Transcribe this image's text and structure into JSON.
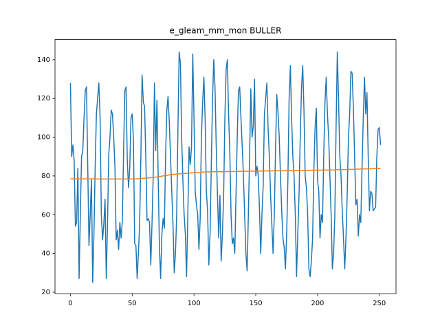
{
  "chart_data": {
    "type": "line",
    "title": "e_gleam_mm_mon BULLER",
    "x": [
      0,
      1,
      2,
      3,
      4,
      5,
      6,
      7,
      8,
      9,
      10,
      11,
      12,
      13,
      14,
      15,
      16,
      17,
      18,
      19,
      20,
      21,
      22,
      23,
      24,
      25,
      26,
      27,
      28,
      29,
      30,
      31,
      32,
      33,
      34,
      35,
      36,
      37,
      38,
      39,
      40,
      41,
      42,
      43,
      44,
      45,
      46,
      47,
      48,
      49,
      50,
      51,
      52,
      53,
      54,
      55,
      56,
      57,
      58,
      59,
      60,
      61,
      62,
      63,
      64,
      65,
      66,
      67,
      68,
      69,
      70,
      71,
      72,
      73,
      74,
      75,
      76,
      77,
      78,
      79,
      80,
      81,
      82,
      83,
      84,
      85,
      86,
      87,
      88,
      89,
      90,
      91,
      92,
      93,
      94,
      95,
      96,
      97,
      98,
      99,
      100,
      101,
      102,
      103,
      104,
      105,
      106,
      107,
      108,
      109,
      110,
      111,
      112,
      113,
      114,
      115,
      116,
      117,
      118,
      119,
      120,
      121,
      122,
      123,
      124,
      125,
      126,
      127,
      128,
      129,
      130,
      131,
      132,
      133,
      134,
      135,
      136,
      137,
      138,
      139,
      140,
      141,
      142,
      143,
      144,
      145,
      146,
      147,
      148,
      149,
      150,
      151,
      152,
      153,
      154,
      155,
      156,
      157,
      158,
      159,
      160,
      161,
      162,
      163,
      164,
      165,
      166,
      167,
      168,
      169,
      170,
      171,
      172,
      173,
      174,
      175,
      176,
      177,
      178,
      179,
      180,
      181,
      182,
      183,
      184,
      185,
      186,
      187,
      188,
      189,
      190,
      191,
      192,
      193,
      194,
      195,
      196,
      197,
      198,
      199,
      200,
      201,
      202,
      203,
      204,
      205,
      206,
      207,
      208,
      209,
      210,
      211,
      212,
      213,
      214,
      215,
      216,
      217,
      218,
      219,
      220,
      221,
      222,
      223,
      224,
      225,
      226,
      227,
      228,
      229,
      230,
      231,
      232,
      233,
      234,
      235,
      236,
      237,
      238,
      239,
      240,
      241,
      242,
      243,
      244,
      245,
      246,
      247,
      248,
      249,
      250,
      251
    ],
    "series": [
      {
        "color": "#1f77b4",
        "values": [
          128,
          90,
          96,
          88,
          54,
          56,
          84,
          27,
          60,
          90,
          93,
          110,
          124,
          126,
          85,
          44,
          60,
          78,
          25,
          50,
          84,
          112,
          120,
          128,
          110,
          60,
          47,
          55,
          68,
          27,
          55,
          91,
          100,
          114,
          112,
          100,
          85,
          47,
          52,
          42,
          56,
          48,
          57,
          92,
          124,
          126,
          88,
          74,
          84,
          110,
          112,
          98,
          45,
          44,
          27,
          40,
          55,
          90,
          132,
          118,
          116,
          90,
          57,
          58,
          56,
          34,
          55,
          80,
          128,
          93,
          119,
          80,
          44,
          27,
          50,
          58,
          53,
          90,
          114,
          121,
          108,
          90,
          72,
          55,
          30,
          40,
          60,
          104,
          144,
          138,
          100,
          78,
          60,
          50,
          28,
          60,
          95,
          86,
          95,
          143,
          110,
          72,
          65,
          60,
          42,
          58,
          100,
          118,
          131,
          110,
          72,
          62,
          34,
          50,
          85,
          120,
          140,
          126,
          95,
          70,
          48,
          70,
          36,
          50,
          70,
          110,
          135,
          140,
          112,
          92,
          60,
          45,
          48,
          40,
          70,
          100,
          124,
          126,
          110,
          96,
          80,
          60,
          40,
          31,
          60,
          90,
          125,
          100,
          106,
          130,
          80,
          85,
          80,
          63,
          40,
          60,
          75,
          112,
          120,
          128,
          104,
          90,
          70,
          55,
          40,
          60,
          94,
          122,
          113,
          100,
          80,
          62,
          48,
          43,
          32,
          50,
          78,
          120,
          137,
          110,
          90,
          80,
          60,
          28,
          50,
          70,
          100,
          125,
          137,
          114,
          80,
          74,
          60,
          32,
          28,
          36,
          48,
          82,
          105,
          115,
          78,
          72,
          48,
          60,
          56,
          90,
          118,
          131,
          112,
          100,
          80,
          60,
          32,
          40,
          60,
          105,
          144,
          120,
          90,
          80,
          62,
          48,
          32,
          48,
          70,
          100,
          112,
          134,
          133,
          115,
          90,
          65,
          68,
          49,
          60,
          56,
          84,
          110,
          131,
          112,
          123,
          90,
          62,
          72,
          71,
          62,
          63,
          64,
          90,
          104,
          105,
          96
        ]
      },
      {
        "color": "#ff7f0e",
        "values": [
          78.5,
          78.5,
          78.5,
          78.5,
          78.5,
          78.5,
          78.5,
          78.5,
          78.5,
          78.5,
          78.5,
          78.5,
          78.5,
          78.5,
          78.5,
          78.5,
          78.5,
          78.5,
          78.5,
          78.5,
          78.4,
          78.4,
          78.4,
          78.4,
          78.4,
          78.4,
          78.4,
          78.4,
          78.4,
          78.4,
          78.4,
          78.4,
          78.4,
          78.4,
          78.4,
          78.4,
          78.4,
          78.4,
          78.4,
          78.4,
          78.4,
          78.4,
          78.4,
          78.4,
          78.4,
          78.4,
          78.4,
          78.4,
          78.4,
          78.4,
          78.4,
          78.4,
          78.5,
          78.5,
          78.5,
          78.6,
          78.6,
          78.7,
          78.7,
          78.8,
          78.8,
          78.9,
          78.9,
          79.0,
          79.0,
          79.1,
          79.1,
          79.2,
          79.3,
          79.4,
          79.5,
          79.6,
          79.7,
          79.8,
          79.9,
          80.0,
          80.1,
          80.2,
          80.3,
          80.4,
          80.5,
          80.6,
          80.7,
          80.8,
          80.9,
          80.9,
          81.0,
          81.0,
          81.1,
          81.1,
          81.2,
          81.2,
          81.3,
          81.3,
          81.4,
          81.4,
          81.5,
          81.5,
          81.6,
          81.6,
          81.7,
          81.7,
          81.8,
          81.8,
          81.8,
          81.9,
          81.9,
          82.0,
          82.0,
          82.0,
          82.1,
          82.1,
          82.1,
          82.1,
          82.1,
          82.2,
          82.2,
          82.2,
          82.2,
          82.2,
          82.2,
          82.2,
          82.2,
          82.2,
          82.2,
          82.3,
          82.3,
          82.3,
          82.3,
          82.3,
          82.3,
          82.3,
          82.3,
          82.3,
          82.3,
          82.4,
          82.4,
          82.4,
          82.4,
          82.4,
          82.4,
          82.4,
          82.4,
          82.4,
          82.4,
          82.5,
          82.5,
          82.5,
          82.5,
          82.5,
          82.5,
          82.5,
          82.5,
          82.5,
          82.5,
          82.6,
          82.6,
          82.6,
          82.6,
          82.6,
          82.6,
          82.6,
          82.6,
          82.6,
          82.6,
          82.7,
          82.7,
          82.7,
          82.7,
          82.7,
          82.7,
          82.7,
          82.7,
          82.7,
          82.7,
          82.8,
          82.8,
          82.8,
          82.8,
          82.8,
          82.8,
          82.8,
          82.8,
          82.8,
          82.8,
          82.9,
          82.9,
          82.9,
          82.9,
          82.9,
          82.9,
          82.9,
          82.9,
          82.9,
          82.9,
          83.0,
          83.0,
          83.0,
          83.0,
          83.0,
          83.0,
          83.0,
          83.0,
          83.0,
          83.0,
          83.1,
          83.1,
          83.1,
          83.1,
          83.1,
          83.1,
          83.1,
          83.1,
          83.1,
          83.1,
          83.2,
          83.2,
          83.2,
          83.2,
          83.2,
          83.3,
          83.3,
          83.3,
          83.3,
          83.3,
          83.4,
          83.4,
          83.4,
          83.4,
          83.4,
          83.5,
          83.5,
          83.5,
          83.5,
          83.5,
          83.6,
          83.6,
          83.6,
          83.6,
          83.6,
          83.7,
          83.7,
          83.7,
          83.7,
          83.7,
          83.8,
          83.8,
          83.8,
          83.8,
          83.8,
          83.8,
          83.8
        ]
      }
    ],
    "xlim": [
      -12.5,
      263.5
    ],
    "xticks": [
      0,
      50,
      100,
      150,
      200,
      250
    ],
    "ylim": [
      19.2,
      150.4
    ],
    "yticks": [
      20,
      40,
      60,
      80,
      100,
      120,
      140
    ]
  }
}
